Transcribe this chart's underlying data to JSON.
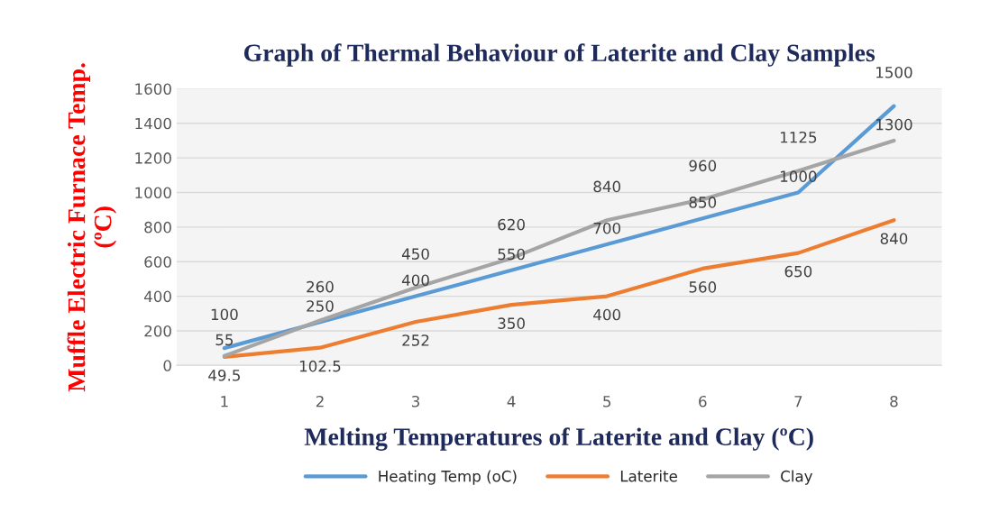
{
  "chart_data": {
    "type": "line",
    "title": "Graph of Thermal Behaviour of Laterite and Clay Samples",
    "xlabel": "Melting Temperatures of Laterite and Clay (ºC)",
    "ylabel": "Muffle Electric Furnace Temp.\n(ºC)",
    "categories": [
      "1",
      "2",
      "3",
      "4",
      "5",
      "6",
      "7",
      "8"
    ],
    "series": [
      {
        "name": "Heating Temp (oC)",
        "color": "#5b9bd5",
        "values": [
          100,
          250,
          400,
          550,
          700,
          850,
          1000,
          1500
        ]
      },
      {
        "name": "Laterite",
        "color": "#ed7d31",
        "values": [
          49.5,
          102.5,
          252,
          350,
          400,
          560,
          650,
          840
        ]
      },
      {
        "name": "Clay",
        "color": "#a5a5a5",
        "values": [
          55,
          260,
          450,
          620,
          840,
          960,
          1125,
          1300
        ]
      }
    ],
    "ylim": [
      0,
      1600
    ],
    "yticks": [
      0,
      200,
      400,
      600,
      800,
      1000,
      1200,
      1400,
      1600
    ],
    "grid": "y",
    "legend": "bottom",
    "data_labels": true,
    "marker": "none",
    "line_style": "solid"
  }
}
